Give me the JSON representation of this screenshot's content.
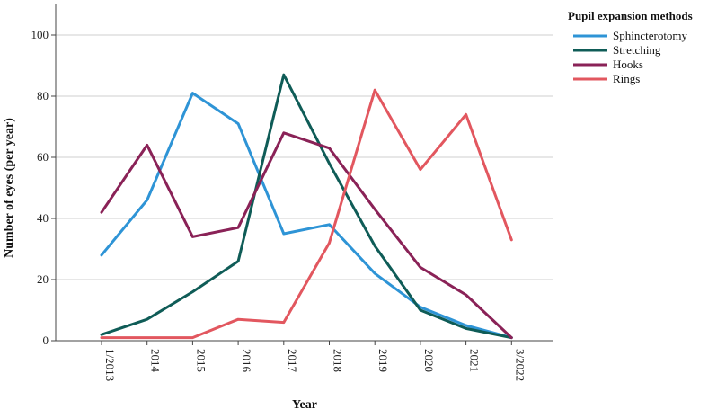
{
  "chart_data": {
    "type": "line",
    "title": "",
    "xlabel": "Year",
    "ylabel": "Number of eyes (per year)",
    "categories": [
      "1/2013",
      "2014",
      "2015",
      "2016",
      "2017",
      "2018",
      "2019",
      "2020",
      "2021",
      "3/2022"
    ],
    "ylim": [
      0,
      110
    ],
    "yticks": [
      0,
      20,
      40,
      60,
      80,
      100
    ],
    "grid": "horizontal",
    "legend": {
      "title": "Pupil expansion methods",
      "position": "top-right"
    },
    "series": [
      {
        "name": "Sphincterotomy",
        "color": "#2e94d6",
        "values": [
          28,
          46,
          81,
          71,
          35,
          38,
          22,
          11,
          5,
          1
        ]
      },
      {
        "name": "Stretching",
        "color": "#0f5c57",
        "values": [
          2,
          7,
          16,
          26,
          87,
          58,
          31,
          10,
          4,
          1
        ]
      },
      {
        "name": "Hooks",
        "color": "#8a2257",
        "values": [
          42,
          64,
          34,
          37,
          68,
          63,
          43,
          24,
          15,
          1
        ]
      },
      {
        "name": "Rings",
        "color": "#e2575f",
        "values": [
          1,
          1,
          1,
          7,
          6,
          32,
          82,
          56,
          74,
          33
        ]
      }
    ]
  }
}
